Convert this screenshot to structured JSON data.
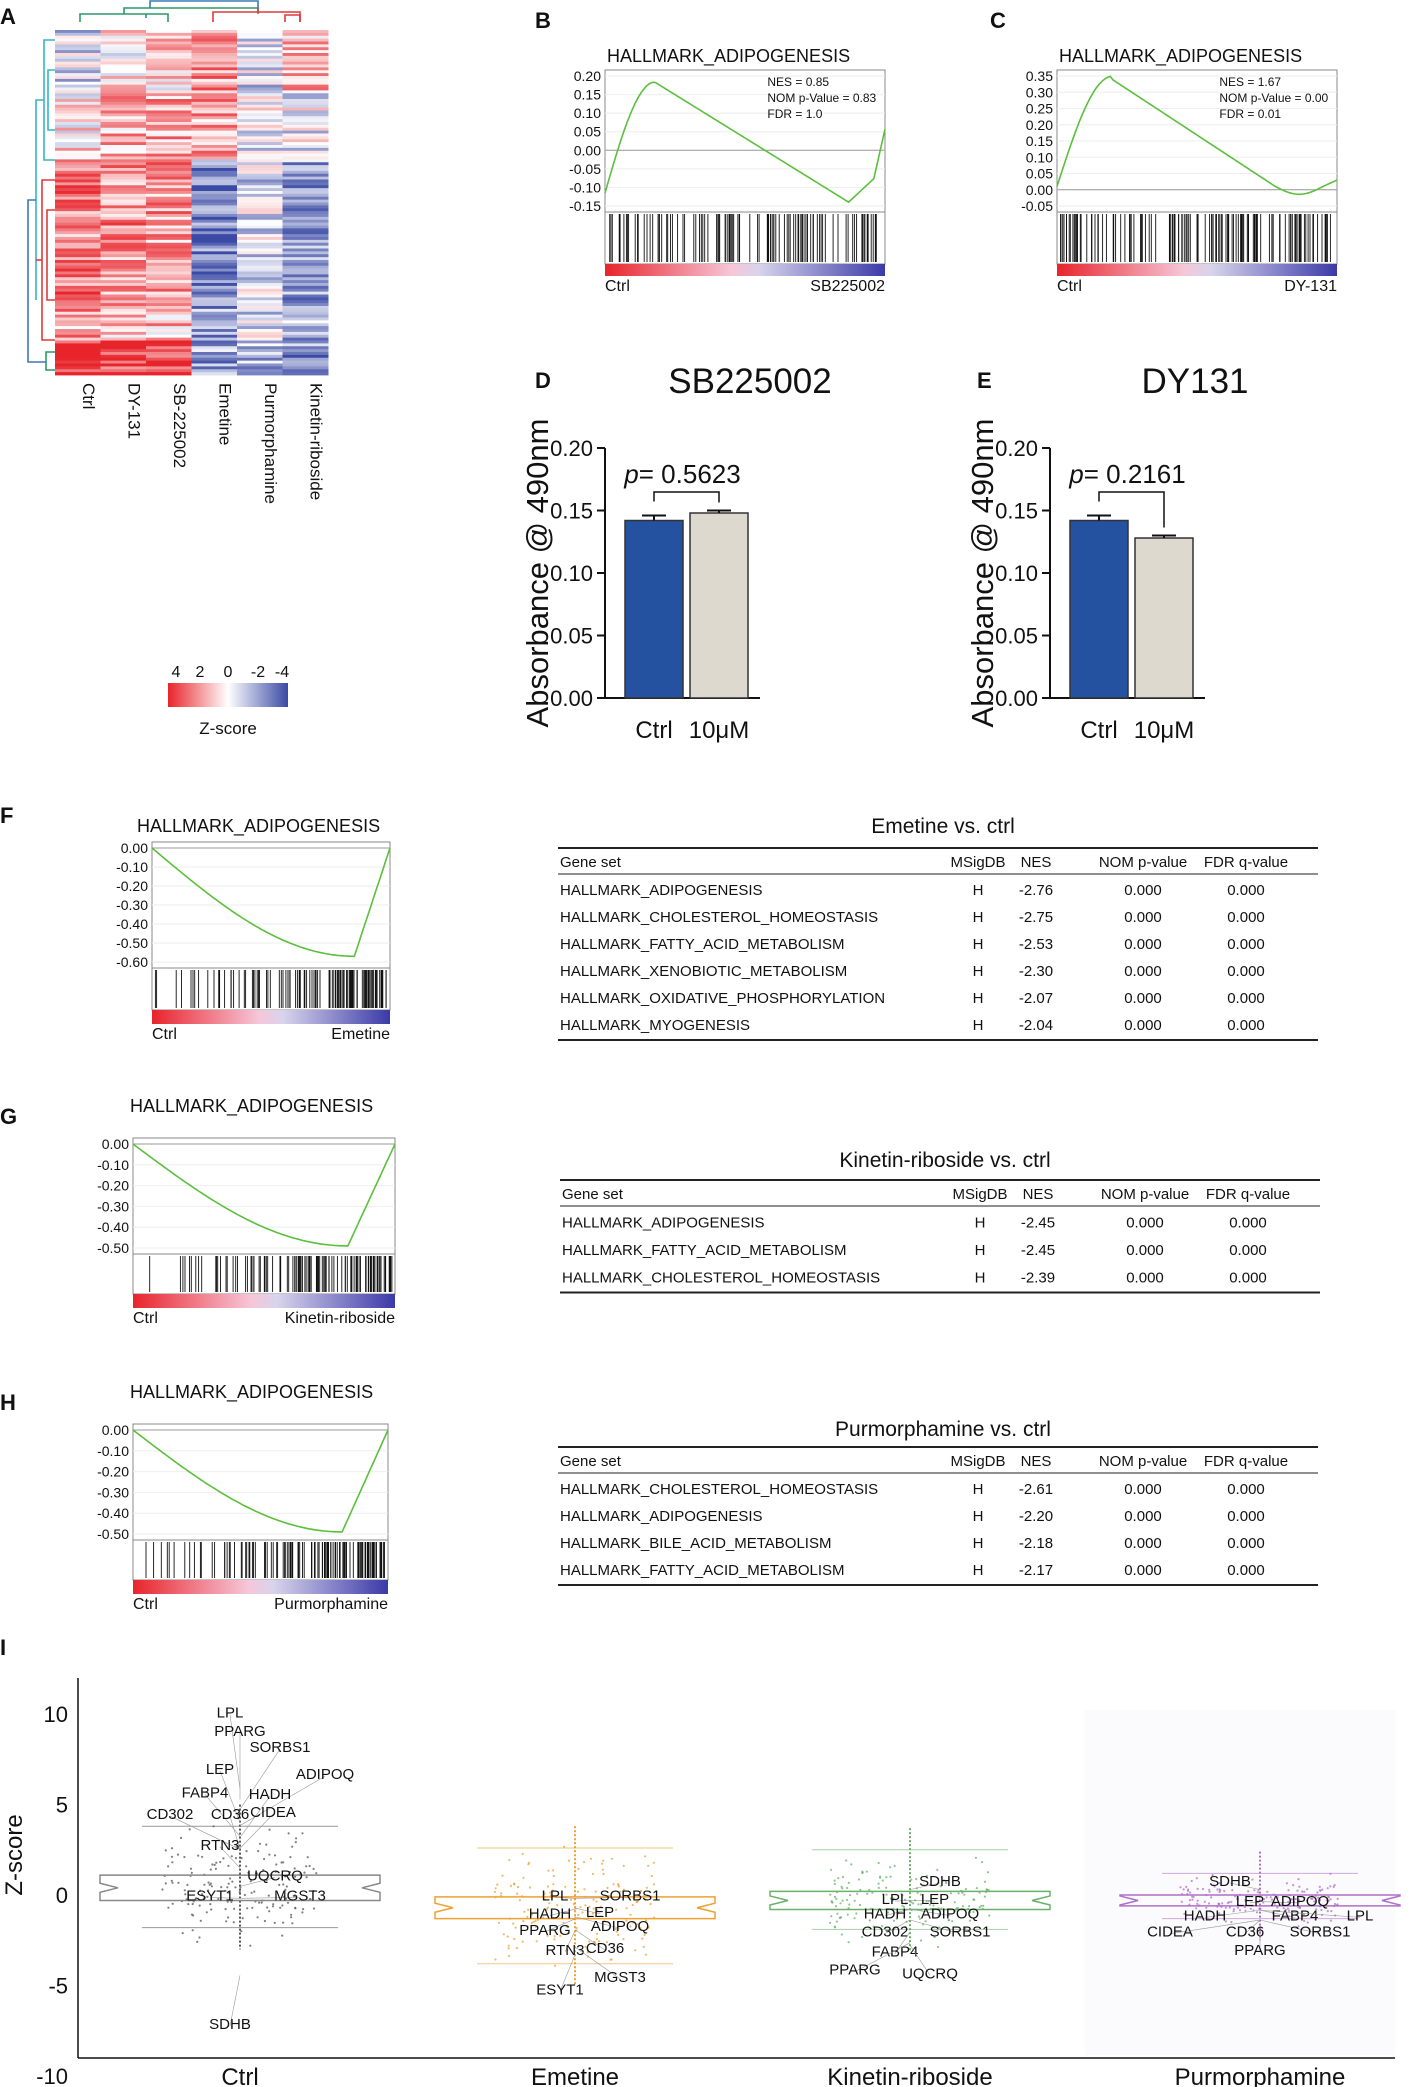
{
  "panels": {
    "A": "A",
    "B": "B",
    "C": "C",
    "D": "D",
    "E": "E",
    "F": "F",
    "G": "G",
    "H": "H",
    "I": "I"
  },
  "heatmap": {
    "columns": [
      "Ctrl",
      "DY-131",
      "SB-225002",
      "Emetine",
      "Purmorphamine",
      "Kinetin-riboside"
    ],
    "legend_ticks": [
      "4",
      "2",
      "0",
      "-2",
      "-4"
    ],
    "legend_label": "Z-score",
    "colors": {
      "high": "#e8242b",
      "mid": "#ffffff",
      "low": "#3a4aa5"
    }
  },
  "gsea": {
    "B": {
      "title": "HALLMARK_ADIPOGENESIS",
      "stats": [
        "NES = 0.85",
        "NOM p-Value = 0.83",
        "FDR = 1.0"
      ],
      "yticks": [
        "0.20",
        "0.15",
        "0.10",
        "0.05",
        "0.00",
        "-0.05",
        "-0.10",
        "-0.15"
      ],
      "left_label": "Ctrl",
      "right_label": "SB225002"
    },
    "C": {
      "title": "HALLMARK_ADIPOGENESIS",
      "stats": [
        "NES = 1.67",
        "NOM p-Value = 0.00",
        "FDR = 0.01"
      ],
      "yticks": [
        "0.35",
        "0.30",
        "0.25",
        "0.20",
        "0.15",
        "0.10",
        "0.05",
        "0.00",
        "-0.05"
      ],
      "left_label": "Ctrl",
      "right_label": "DY-131"
    },
    "F": {
      "title": "HALLMARK_ADIPOGENESIS",
      "yticks": [
        "0.00",
        "-0.10",
        "-0.20",
        "-0.30",
        "-0.40",
        "-0.50",
        "-0.60"
      ],
      "left_label": "Ctrl",
      "right_label": "Emetine"
    },
    "G": {
      "title": "HALLMARK_ADIPOGENESIS",
      "yticks": [
        "0.00",
        "-0.10",
        "-0.20",
        "-0.30",
        "-0.40",
        "-0.50"
      ],
      "left_label": "Ctrl",
      "right_label": "Kinetin-riboside"
    },
    "H": {
      "title": "HALLMARK_ADIPOGENESIS",
      "yticks": [
        "0.00",
        "-0.10",
        "-0.20",
        "-0.30",
        "-0.40",
        "-0.50"
      ],
      "left_label": "Ctrl",
      "right_label": "Purmorphamine"
    }
  },
  "chart_data": [
    {
      "type": "bar",
      "panel": "D",
      "title": "SB225002",
      "categories": [
        "Ctrl",
        "10μM"
      ],
      "values": [
        0.142,
        0.148
      ],
      "errors": [
        0.004,
        0.002
      ],
      "ylabel": "Absorbance @ 490nm",
      "ylim": [
        0,
        0.2
      ],
      "yticks": [
        "0.00",
        "0.05",
        "0.10",
        "0.15",
        "0.20"
      ],
      "p_prefix": "p",
      "p_value": "= 0.5623",
      "colors": [
        "#2452a0",
        "#ded9cf"
      ]
    },
    {
      "type": "bar",
      "panel": "E",
      "title": "DY131",
      "categories": [
        "Ctrl",
        "10μM"
      ],
      "values": [
        0.142,
        0.128
      ],
      "errors": [
        0.004,
        0.002
      ],
      "ylabel": "Absorbance @ 490nm",
      "ylim": [
        0,
        0.2
      ],
      "yticks": [
        "0.00",
        "0.05",
        "0.10",
        "0.15",
        "0.20"
      ],
      "p_prefix": "p",
      "p_value": "= 0.2161",
      "colors": [
        "#2452a0",
        "#ded9cf"
      ]
    },
    {
      "type": "scatter",
      "panel": "I",
      "ylabel": "Z-score",
      "ylim": [
        -10,
        11
      ],
      "yticks": [
        "10",
        "5",
        "0",
        "-5",
        "-10"
      ],
      "groups": [
        {
          "name": "Ctrl",
          "color": "#555555",
          "labels": [
            "LPL",
            "PPARG",
            "SORBS1",
            "LEP",
            "ADIPOQ",
            "FABP4",
            "HADH",
            "CD302",
            "CD36",
            "CIDEA",
            "RTN3",
            "UQCRQ",
            "ESYT1",
            "MGST3",
            "SDHB"
          ]
        },
        {
          "name": "Emetine",
          "color": "#f0a030",
          "labels": [
            "LPL",
            "SORBS1",
            "HADH",
            "LEP",
            "PPARG",
            "ADIPOQ",
            "RTN3",
            "CD36",
            "MGST3",
            "ESYT1"
          ]
        },
        {
          "name": "Kinetin-riboside",
          "color": "#6bb06b",
          "labels": [
            "SDHB",
            "LPL",
            "LEP",
            "HADH",
            "ADIPOQ",
            "CD302",
            "SORBS1",
            "FABP4",
            "PPARG",
            "UQCRQ"
          ]
        },
        {
          "name": "Purmorphamine",
          "color": "#b070c8",
          "labels": [
            "SDHB",
            "LEP",
            "ADIPOQ",
            "HADH",
            "FABP4",
            "LPL",
            "CIDEA",
            "CD36",
            "SORBS1",
            "PPARG"
          ]
        }
      ]
    }
  ],
  "tables": {
    "F": {
      "title": "Emetine vs. ctrl",
      "headers": [
        "Gene set",
        "MSigDB",
        "NES",
        "NOM p-value",
        "FDR q-value"
      ],
      "rows": [
        [
          "HALLMARK_ADIPOGENESIS",
          "H",
          "-2.76",
          "0.000",
          "0.000"
        ],
        [
          "HALLMARK_CHOLESTEROL_HOMEOSTASIS",
          "H",
          "-2.75",
          "0.000",
          "0.000"
        ],
        [
          "HALLMARK_FATTY_ACID_METABOLISM",
          "H",
          "-2.53",
          "0.000",
          "0.000"
        ],
        [
          "HALLMARK_XENOBIOTIC_METABOLISM",
          "H",
          "-2.30",
          "0.000",
          "0.000"
        ],
        [
          "HALLMARK_OXIDATIVE_PHOSPHORYLATION",
          "H",
          "-2.07",
          "0.000",
          "0.000"
        ],
        [
          "HALLMARK_MYOGENESIS",
          "H",
          "-2.04",
          "0.000",
          "0.000"
        ]
      ]
    },
    "G": {
      "title": "Kinetin-riboside vs. ctrl",
      "headers": [
        "Gene set",
        "MSigDB",
        "NES",
        "NOM p-value",
        "FDR q-value"
      ],
      "rows": [
        [
          "HALLMARK_ADIPOGENESIS",
          "H",
          "-2.45",
          "0.000",
          "0.000"
        ],
        [
          "HALLMARK_FATTY_ACID_METABOLISM",
          "H",
          "-2.45",
          "0.000",
          "0.000"
        ],
        [
          "HALLMARK_CHOLESTEROL_HOMEOSTASIS",
          "H",
          "-2.39",
          "0.000",
          "0.000"
        ]
      ]
    },
    "H": {
      "title": "Purmorphamine vs. ctrl",
      "headers": [
        "Gene set",
        "MSigDB",
        "NES",
        "NOM p-value",
        "FDR q-value"
      ],
      "rows": [
        [
          "HALLMARK_CHOLESTEROL_HOMEOSTASIS",
          "H",
          "-2.61",
          "0.000",
          "0.000"
        ],
        [
          "HALLMARK_ADIPOGENESIS",
          "H",
          "-2.20",
          "0.000",
          "0.000"
        ],
        [
          "HALLMARK_BILE_ACID_METABOLISM",
          "H",
          "-2.18",
          "0.000",
          "0.000"
        ],
        [
          "HALLMARK_FATTY_ACID_METABOLISM",
          "H",
          "-2.17",
          "0.000",
          "0.000"
        ]
      ]
    }
  }
}
